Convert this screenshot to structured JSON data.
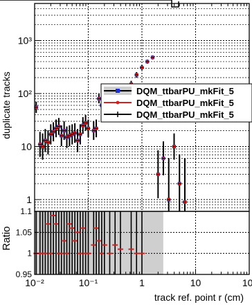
{
  "chart_data": [
    {
      "type": "scatter",
      "ylabel": "duplicate tracks",
      "log_x": true,
      "log_y": true,
      "xlim": [
        0.01,
        100
      ],
      "ylim": [
        0.6,
        5000
      ],
      "grid": true,
      "legend_position": "right",
      "yticks": [
        {
          "value": 1,
          "label": "1"
        },
        {
          "value": 10,
          "label": "10"
        },
        {
          "value": 100,
          "label": "10²"
        },
        {
          "value": 1000,
          "label": "10³"
        }
      ],
      "series": [
        {
          "name": "DQM_ttbarPU_mkFit_5",
          "color": "#1f2fd8",
          "marker": "box",
          "points": [
            [
              0.0107,
              55
            ],
            [
              0.0126,
              11
            ],
            [
              0.0141,
              10
            ],
            [
              0.0158,
              13
            ],
            [
              0.0178,
              12
            ],
            [
              0.02,
              17
            ],
            [
              0.0224,
              19
            ],
            [
              0.0251,
              22
            ],
            [
              0.0282,
              24
            ],
            [
              0.0316,
              16
            ],
            [
              0.0355,
              20
            ],
            [
              0.0398,
              15
            ],
            [
              0.0447,
              16
            ],
            [
              0.0501,
              17
            ],
            [
              0.0562,
              18
            ],
            [
              0.0631,
              13
            ],
            [
              0.0708,
              17
            ],
            [
              0.0794,
              25
            ],
            [
              0.0891,
              28
            ],
            [
              0.1,
              22
            ],
            [
              0.126,
              20
            ],
            [
              0.141,
              22
            ],
            [
              0.158,
              80
            ],
            [
              0.178,
              60
            ],
            [
              0.2,
              45
            ],
            [
              0.251,
              42
            ],
            [
              0.316,
              50
            ],
            [
              0.398,
              75
            ],
            [
              0.631,
              150
            ],
            [
              0.794,
              225
            ],
            [
              1.0,
              310
            ],
            [
              1.26,
              400
            ],
            [
              1.58,
              480
            ],
            [
              2.0,
              3
            ],
            [
              2.51,
              6
            ],
            [
              3.16,
              1
            ],
            [
              3.98,
              10
            ],
            [
              5.01,
              2
            ],
            [
              6.31,
              0.9
            ]
          ]
        },
        {
          "name": "DQM_ttbarPU_mkFit_5",
          "color": "#d62020",
          "marker": "dot",
          "points": [
            [
              0.0107,
              55
            ],
            [
              0.0126,
              11
            ],
            [
              0.0141,
              10
            ],
            [
              0.0158,
              13
            ],
            [
              0.0178,
              12
            ],
            [
              0.02,
              17
            ],
            [
              0.0224,
              19
            ],
            [
              0.0251,
              22
            ],
            [
              0.0282,
              24
            ],
            [
              0.0316,
              16
            ],
            [
              0.0355,
              20
            ],
            [
              0.0398,
              15
            ],
            [
              0.0447,
              16
            ],
            [
              0.0501,
              17
            ],
            [
              0.0562,
              18
            ],
            [
              0.0631,
              13
            ],
            [
              0.0708,
              17
            ],
            [
              0.0794,
              25
            ],
            [
              0.0891,
              28
            ],
            [
              0.1,
              22
            ],
            [
              0.126,
              20
            ],
            [
              0.141,
              22
            ],
            [
              0.158,
              80
            ],
            [
              0.178,
              60
            ],
            [
              0.2,
              45
            ],
            [
              0.251,
              42
            ],
            [
              0.316,
              50
            ],
            [
              0.398,
              75
            ],
            [
              0.631,
              150
            ],
            [
              0.794,
              225
            ],
            [
              1.0,
              310
            ],
            [
              1.26,
              400
            ],
            [
              1.58,
              480
            ],
            [
              2.0,
              3
            ],
            [
              2.51,
              6
            ],
            [
              3.16,
              1
            ],
            [
              3.98,
              10
            ],
            [
              5.01,
              2
            ],
            [
              6.31,
              0.9
            ]
          ]
        },
        {
          "name": "DQM_ttbarPU_mkFit_5",
          "color": "#000000",
          "marker": "cross",
          "points": [
            [
              0.0107,
              55
            ],
            [
              0.0126,
              11
            ],
            [
              0.0141,
              10
            ],
            [
              0.0158,
              13
            ],
            [
              0.0178,
              12
            ],
            [
              0.02,
              17
            ],
            [
              0.0224,
              19
            ],
            [
              0.0251,
              22
            ],
            [
              0.0282,
              24
            ],
            [
              0.0316,
              16
            ],
            [
              0.0355,
              20
            ],
            [
              0.0398,
              15
            ],
            [
              0.0447,
              16
            ],
            [
              0.0501,
              17
            ],
            [
              0.0562,
              18
            ],
            [
              0.0631,
              13
            ],
            [
              0.0708,
              17
            ],
            [
              0.0794,
              25
            ],
            [
              0.0891,
              28
            ],
            [
              0.1,
              22
            ],
            [
              0.126,
              20
            ],
            [
              0.141,
              22
            ],
            [
              0.158,
              80
            ],
            [
              0.178,
              60
            ],
            [
              0.2,
              45
            ],
            [
              0.251,
              42
            ],
            [
              0.316,
              50
            ],
            [
              0.398,
              75
            ],
            [
              0.631,
              150
            ],
            [
              0.794,
              225
            ],
            [
              1.0,
              310
            ],
            [
              1.26,
              400
            ],
            [
              1.58,
              480
            ],
            [
              2.0,
              3
            ],
            [
              2.51,
              6
            ],
            [
              3.16,
              1
            ],
            [
              3.98,
              10
            ],
            [
              5.01,
              2
            ],
            [
              6.31,
              0.9
            ]
          ]
        }
      ]
    },
    {
      "type": "scatter",
      "ylabel": "Ratio",
      "xlabel": "track ref. point r (cm)",
      "log_x": true,
      "xlim": [
        0.01,
        100
      ],
      "ylim": [
        0.95,
        1.1
      ],
      "grid": true,
      "xticks": [
        {
          "value": 0.01,
          "label": "10⁻²"
        },
        {
          "value": 0.1,
          "label": "10⁻¹"
        },
        {
          "value": 1,
          "label": "1"
        },
        {
          "value": 10,
          "label": "10"
        },
        {
          "value": 100,
          "label": "10²"
        }
      ],
      "yticks": [
        {
          "value": 0.95,
          "label": "0.95"
        },
        {
          "value": 1,
          "label": "1"
        },
        {
          "value": 1.05,
          "label": "1.05"
        },
        {
          "value": 1.1,
          "label": "1.1"
        }
      ],
      "band_upto_x": 2.5,
      "series": [
        {
          "name": "ratio",
          "color": "#d62020",
          "points": [
            [
              0.0107,
              1.0
            ],
            [
              0.0126,
              1.0
            ],
            [
              0.0141,
              1.0
            ],
            [
              0.0158,
              1.0
            ],
            [
              0.0178,
              1.07
            ],
            [
              0.02,
              1.0
            ],
            [
              0.0224,
              1.09
            ],
            [
              0.0251,
              1.07
            ],
            [
              0.0282,
              1.0
            ],
            [
              0.0316,
              1.0
            ],
            [
              0.0355,
              1.03
            ],
            [
              0.0398,
              1.0
            ],
            [
              0.0447,
              1.07
            ],
            [
              0.0501,
              1.06
            ],
            [
              0.0562,
              1.03
            ],
            [
              0.0631,
              1.05
            ],
            [
              0.0708,
              1.0
            ],
            [
              0.0794,
              1.06
            ],
            [
              0.0891,
              1.0
            ],
            [
              0.1,
              1.0
            ],
            [
              0.126,
              1.02
            ],
            [
              0.141,
              1.06
            ],
            [
              0.158,
              1.03
            ],
            [
              0.178,
              1.0
            ],
            [
              0.2,
              1.02
            ],
            [
              0.251,
              1.0
            ],
            [
              0.316,
              1.02
            ],
            [
              0.398,
              1.01
            ],
            [
              0.631,
              1.01
            ],
            [
              0.794,
              1.0
            ],
            [
              1.0,
              1.0
            ]
          ]
        }
      ]
    }
  ]
}
